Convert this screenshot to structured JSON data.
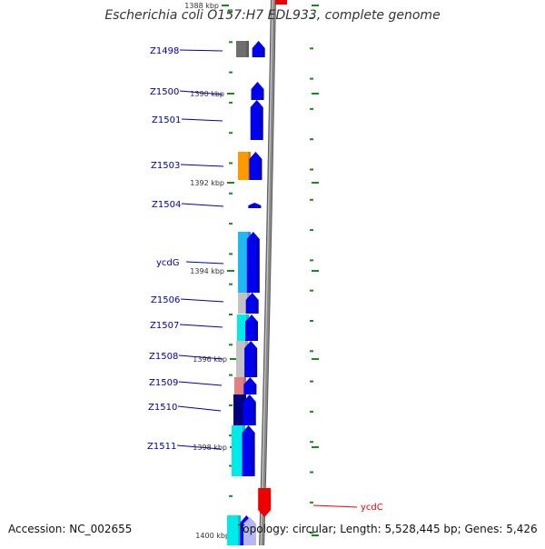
{
  "title": "Escherichia coli O157:H7 EDL933, complete genome",
  "accession": "Accession: NC_002655",
  "topology": "Topology: circular; Length: 5,528,445 bp; Genes: 5,426",
  "colors": {
    "backbone": "#8a8a8a",
    "tick": "#1a8a1a",
    "forward_gene": "#0000ee",
    "reverse_gene": "#ee0000",
    "gene_label": "#0000aa",
    "reverse_label": "#ee0000",
    "ruler_text": "#333333"
  },
  "ruler_labels": [
    "1388 kbp",
    "1390 kbp",
    "1392 kbp",
    "1394 kbp",
    "1396 kbp",
    "1398 kbp",
    "1400 kbp"
  ],
  "genes": [
    {
      "name": "Z1498",
      "strand": "+",
      "cog_color": "#6e6e6e"
    },
    {
      "name": "Z1500",
      "strand": "+",
      "cog_color": ""
    },
    {
      "name": "Z1501",
      "strand": "+",
      "cog_color": ""
    },
    {
      "name": "Z1503",
      "strand": "+",
      "cog_color": "#ff9900"
    },
    {
      "name": "Z1504",
      "strand": "+",
      "cog_color": ""
    },
    {
      "name": "ycdG",
      "strand": "+",
      "cog_color": "#1fb8f0"
    },
    {
      "name": "Z1506",
      "strand": "+",
      "cog_color": "#c2c2c2"
    },
    {
      "name": "Z1507",
      "strand": "+",
      "cog_color": "#00eaea"
    },
    {
      "name": "Z1508",
      "strand": "+",
      "cog_color": "#c2c2c2"
    },
    {
      "name": "Z1509",
      "strand": "+",
      "cog_color": "#e08080"
    },
    {
      "name": "Z1510",
      "strand": "+",
      "cog_color": "#000080"
    },
    {
      "name": "Z1511",
      "strand": "+",
      "cog_color": "#00eaea"
    },
    {
      "name": "ycdC",
      "strand": "-",
      "cog_color": ""
    },
    {
      "name": "",
      "strand": "+",
      "cog_color": "#00eaea"
    }
  ]
}
